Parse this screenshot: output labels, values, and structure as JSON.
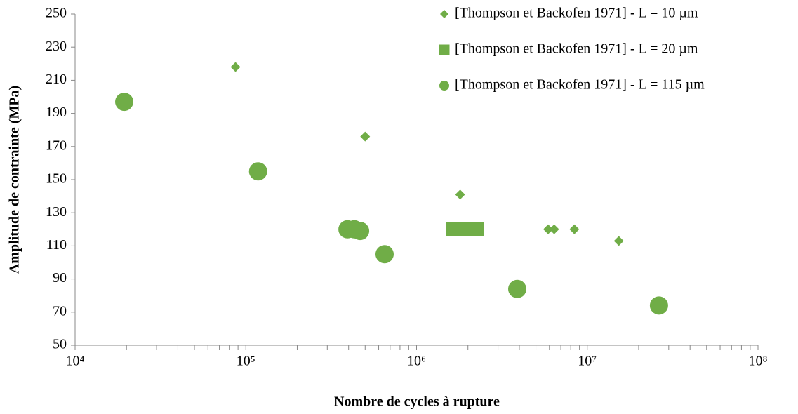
{
  "chart_data": {
    "type": "scatter",
    "xlabel": "Nombre de cycles à rupture",
    "ylabel": "Amplitude de contrainte (MPa)",
    "xscale": "log",
    "xlim": [
      10000,
      100000000
    ],
    "xticks": [
      {
        "value": 10000,
        "label": "10⁴"
      },
      {
        "value": 100000,
        "label": "10⁵"
      },
      {
        "value": 1000000,
        "label": "10⁶"
      },
      {
        "value": 10000000,
        "label": "10⁷"
      },
      {
        "value": 100000000,
        "label": "10⁸"
      }
    ],
    "xminorticks": [
      20000,
      30000,
      40000,
      50000,
      60000,
      70000,
      80000,
      90000,
      200000,
      300000,
      400000,
      500000,
      600000,
      700000,
      800000,
      900000,
      2000000,
      3000000,
      4000000,
      5000000,
      6000000,
      7000000,
      8000000,
      9000000,
      20000000,
      30000000,
      40000000,
      50000000,
      60000000,
      70000000,
      80000000,
      90000000
    ],
    "ylim": [
      50,
      250
    ],
    "yticks": [
      50,
      70,
      90,
      110,
      130,
      150,
      170,
      190,
      210,
      230,
      250
    ],
    "grid": false,
    "legend": "upper right",
    "series": [
      {
        "name": "[Thompson et Backofen 1971] - L = 10 µm",
        "color": "#70ad47",
        "marker": "diamond",
        "x": [
          87000,
          500000,
          1800000,
          5900000,
          6400000,
          8400000,
          15300000
        ],
        "values": [
          218,
          176,
          141,
          120,
          120,
          120,
          113
        ]
      },
      {
        "name": "[Thompson et Backofen 1971] - L = 20 µm",
        "color": "#70ad47",
        "marker": "square",
        "x": [
          1930000
        ],
        "values": [
          120
        ]
      },
      {
        "name": "[Thompson et Backofen 1971] - L = 115 µm",
        "color": "#70ad47",
        "marker": "circle",
        "x": [
          19400,
          118000,
          394000,
          432000,
          467000,
          650000,
          3890000,
          26300000
        ],
        "values": [
          197,
          155,
          120,
          120,
          119,
          105,
          84,
          74
        ]
      }
    ]
  }
}
